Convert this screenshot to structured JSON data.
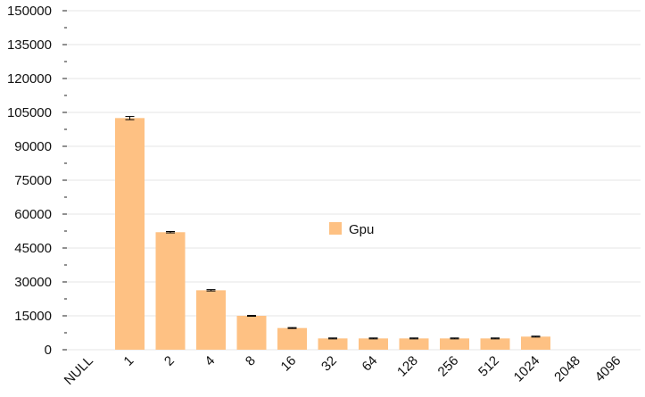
{
  "chart_data": {
    "type": "bar",
    "categories": [
      "NULL",
      "1",
      "2",
      "4",
      "8",
      "16",
      "32",
      "64",
      "128",
      "256",
      "512",
      "1024",
      "2048",
      "4096"
    ],
    "series": [
      {
        "name": "Gpu",
        "values": [
          0,
          102500,
          52000,
          26300,
          15000,
          9600,
          5000,
          5000,
          5000,
          5000,
          5000,
          5800,
          0,
          0
        ],
        "errors": [
          0,
          700,
          300,
          300,
          200,
          200,
          200,
          200,
          200,
          200,
          200,
          200,
          0,
          0
        ],
        "color": "#fec183"
      }
    ],
    "ylim": [
      0,
      150000
    ],
    "yticks": [
      0,
      15000,
      30000,
      45000,
      60000,
      75000,
      90000,
      105000,
      120000,
      135000,
      150000
    ],
    "ytick_labels": [
      "0",
      "15000",
      "30000",
      "45000",
      "60000",
      "75000",
      "90000",
      "105000",
      "120000",
      "135000",
      "150000"
    ],
    "title": "",
    "xlabel": "",
    "ylabel": "",
    "grid": true,
    "legend": "center"
  },
  "colors": {
    "grid": "#e6e6e6",
    "axis": "#222222",
    "error_bar": "#000000"
  }
}
